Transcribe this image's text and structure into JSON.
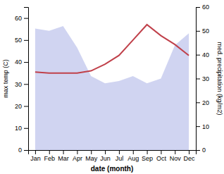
{
  "chart_data": {
    "type": "line",
    "xlabel": "date (month)",
    "ylabel": "max temp (C)",
    "y2label": "med. precipitation (kg/m2)",
    "categories": [
      "Jan",
      "Feb",
      "Mar",
      "Apr",
      "May",
      "Jun",
      "Jul",
      "Aug",
      "Sep",
      "Oct",
      "Nov",
      "Dec"
    ],
    "series": [
      {
        "type": "area",
        "axis": "y2",
        "color": "#b0b8e8",
        "values": [
          51,
          50,
          52,
          43,
          31,
          28,
          29,
          31,
          28,
          30,
          44,
          49
        ]
      },
      {
        "type": "line",
        "color": "#c0404a",
        "values": [
          35.5,
          35,
          35,
          35,
          36,
          39,
          43,
          50,
          57,
          52,
          48,
          43
        ]
      }
    ],
    "ylim": [
      0,
      65
    ],
    "yticks": [
      0,
      10,
      20,
      30,
      40,
      50,
      60
    ],
    "y2lim": [
      0,
      60
    ],
    "y2ticks": [
      0,
      10,
      20,
      30,
      40,
      50,
      60
    ],
    "grid": false
  }
}
